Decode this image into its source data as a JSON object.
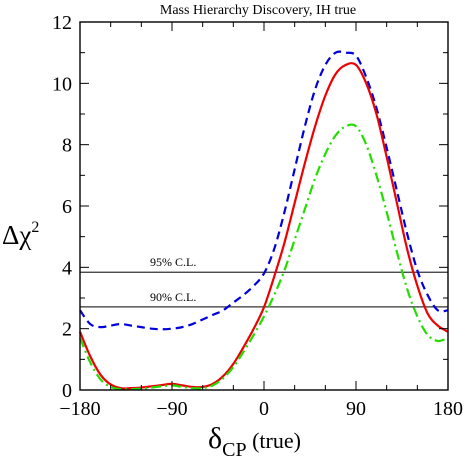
{
  "chart_data": {
    "type": "line",
    "title": "Mass Hierarchy Discovery, IH true",
    "ylabel": {
      "base": "Δχ",
      "sup": "2"
    },
    "xlabel": {
      "base": "δ",
      "sub": "CP",
      "rest": " (true)"
    },
    "xlim": [
      -180,
      180
    ],
    "ylim": [
      0,
      12
    ],
    "xticks": [
      -180,
      -90,
      0,
      90,
      180
    ],
    "xtick_labels": [
      "−180",
      "−90",
      "0",
      "90",
      "180"
    ],
    "yticks": [
      0,
      2,
      4,
      6,
      8,
      10,
      12
    ],
    "ytick_labels": [
      "0",
      "2",
      "4",
      "6",
      "8",
      "10",
      "12"
    ],
    "grid": false,
    "reference_lines": [
      {
        "y": 3.84,
        "label": "95% C.L."
      },
      {
        "y": 2.71,
        "label": "90% C.L."
      }
    ],
    "series": [
      {
        "style": "dashed",
        "color": "#0000dd",
        "x": [
          -180,
          -170,
          -160,
          -150,
          -140,
          -130,
          -120,
          -110,
          -100,
          -90,
          -80,
          -70,
          -60,
          -50,
          -40,
          -30,
          -20,
          -10,
          0,
          10,
          20,
          30,
          40,
          50,
          60,
          70,
          80,
          90,
          100,
          110,
          120,
          130,
          140,
          150,
          160,
          170,
          180
        ],
        "y": [
          2.6,
          2.15,
          2.05,
          2.1,
          2.15,
          2.1,
          2.05,
          2.0,
          1.98,
          2.0,
          2.05,
          2.15,
          2.3,
          2.45,
          2.6,
          2.85,
          3.1,
          3.4,
          3.8,
          4.6,
          5.8,
          7.2,
          8.6,
          9.8,
          10.6,
          11.0,
          11.0,
          10.9,
          10.2,
          9.2,
          7.9,
          6.5,
          5.1,
          3.9,
          3.1,
          2.6,
          2.6
        ]
      },
      {
        "style": "solid",
        "color": "#ee0000",
        "x": [
          -180,
          -170,
          -160,
          -150,
          -140,
          -130,
          -120,
          -110,
          -100,
          -90,
          -80,
          -70,
          -60,
          -50,
          -40,
          -30,
          -20,
          -10,
          0,
          10,
          20,
          30,
          40,
          50,
          60,
          70,
          80,
          90,
          100,
          110,
          120,
          130,
          140,
          150,
          160,
          170,
          180
        ],
        "y": [
          1.9,
          1.1,
          0.5,
          0.18,
          0.06,
          0.06,
          0.08,
          0.12,
          0.16,
          0.2,
          0.15,
          0.1,
          0.1,
          0.2,
          0.45,
          0.85,
          1.4,
          2.0,
          2.7,
          3.7,
          4.8,
          6.1,
          7.4,
          8.6,
          9.6,
          10.3,
          10.6,
          10.6,
          10.0,
          9.0,
          7.6,
          6.1,
          4.6,
          3.4,
          2.5,
          2.1,
          1.9
        ]
      },
      {
        "style": "dashdot",
        "color": "#22dd00",
        "x": [
          -180,
          -170,
          -160,
          -150,
          -140,
          -130,
          -120,
          -110,
          -100,
          -90,
          -80,
          -70,
          -60,
          -50,
          -40,
          -30,
          -20,
          -10,
          0,
          10,
          20,
          30,
          40,
          50,
          60,
          70,
          80,
          90,
          100,
          110,
          120,
          130,
          140,
          150,
          160,
          170,
          180
        ],
        "y": [
          1.7,
          0.9,
          0.35,
          0.1,
          0.03,
          0.03,
          0.04,
          0.08,
          0.12,
          0.15,
          0.1,
          0.06,
          0.06,
          0.15,
          0.38,
          0.75,
          1.25,
          1.8,
          2.4,
          3.1,
          3.9,
          4.9,
          5.9,
          6.9,
          7.7,
          8.3,
          8.6,
          8.6,
          8.0,
          7.0,
          5.8,
          4.5,
          3.3,
          2.4,
          1.8,
          1.6,
          1.7
        ]
      }
    ]
  }
}
